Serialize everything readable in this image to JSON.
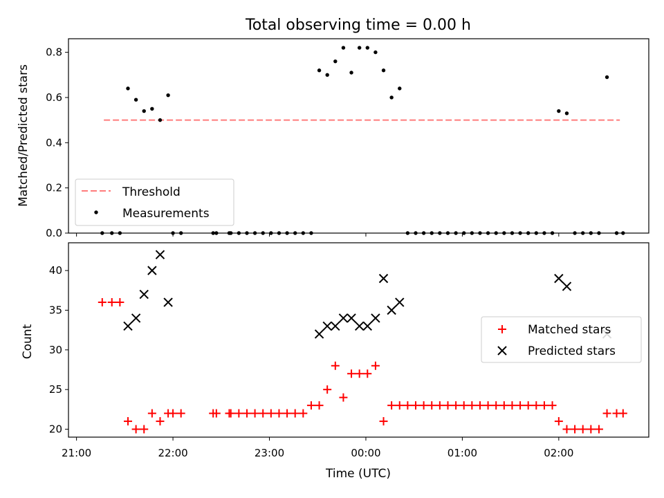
{
  "title": "Total observing time = 0.00 h",
  "x_tick_labels": [
    "21:00",
    "22:00",
    "23:00",
    "00:00",
    "01:00",
    "02:00"
  ],
  "chart_data": [
    {
      "type": "scatter",
      "ylabel": "Matched/Predicted stars",
      "xlim": [
        "20:55",
        "02:56"
      ],
      "ylim": [
        0,
        0.86
      ],
      "yticks": [
        0.0,
        0.2,
        0.4,
        0.6,
        0.8
      ],
      "legend": {
        "position": "lower-left",
        "entries": [
          "Threshold",
          "Measurements"
        ]
      },
      "threshold": {
        "name": "Threshold",
        "color": "#ff7b7b",
        "style": "dashed",
        "y": 0.5,
        "x_start": "21:17",
        "x_end": "02:38"
      },
      "measurements": {
        "name": "Measurements",
        "color": "#000000",
        "points": [
          [
            "21:16",
            0
          ],
          [
            "21:22",
            0
          ],
          [
            "21:27",
            0
          ],
          [
            "21:32",
            0.64
          ],
          [
            "21:37",
            0.59
          ],
          [
            "21:42",
            0.54
          ],
          [
            "21:47",
            0.55
          ],
          [
            "21:52",
            0.5
          ],
          [
            "21:57",
            0.61
          ],
          [
            "22:00",
            0
          ],
          [
            "22:05",
            0
          ],
          [
            "22:25",
            0
          ],
          [
            "22:27",
            0
          ],
          [
            "22:35",
            0
          ],
          [
            "22:36",
            0
          ],
          [
            "22:41",
            0
          ],
          [
            "22:46",
            0
          ],
          [
            "22:51",
            0
          ],
          [
            "22:56",
            0
          ],
          [
            "23:01",
            0
          ],
          [
            "23:06",
            0
          ],
          [
            "23:11",
            0
          ],
          [
            "23:16",
            0
          ],
          [
            "23:21",
            0
          ],
          [
            "23:26",
            0
          ],
          [
            "23:31",
            0.72
          ],
          [
            "23:36",
            0.7
          ],
          [
            "23:41",
            0.76
          ],
          [
            "23:46",
            0.82
          ],
          [
            "23:51",
            0.71
          ],
          [
            "23:56",
            0.82
          ],
          [
            "00:01",
            0.82
          ],
          [
            "00:06",
            0.8
          ],
          [
            "00:11",
            0.72
          ],
          [
            "00:16",
            0.6
          ],
          [
            "00:21",
            0.64
          ],
          [
            "00:26",
            0
          ],
          [
            "00:31",
            0
          ],
          [
            "00:36",
            0
          ],
          [
            "00:41",
            0
          ],
          [
            "00:46",
            0
          ],
          [
            "00:51",
            0
          ],
          [
            "00:56",
            0
          ],
          [
            "01:01",
            0
          ],
          [
            "01:06",
            0
          ],
          [
            "01:11",
            0
          ],
          [
            "01:16",
            0
          ],
          [
            "01:21",
            0
          ],
          [
            "01:26",
            0
          ],
          [
            "01:31",
            0
          ],
          [
            "01:36",
            0
          ],
          [
            "01:41",
            0
          ],
          [
            "01:46",
            0
          ],
          [
            "01:51",
            0
          ],
          [
            "01:56",
            0
          ],
          [
            "02:00",
            0.54
          ],
          [
            "02:05",
            0.53
          ],
          [
            "02:10",
            0
          ],
          [
            "02:15",
            0
          ],
          [
            "02:20",
            0
          ],
          [
            "02:25",
            0
          ],
          [
            "02:30",
            0.69
          ],
          [
            "02:36",
            0
          ],
          [
            "02:40",
            0
          ]
        ]
      }
    },
    {
      "type": "scatter",
      "ylabel": "Count",
      "xlabel": "Time (UTC)",
      "xlim": [
        "20:55",
        "02:56"
      ],
      "ylim": [
        19,
        43.5
      ],
      "yticks": [
        20,
        25,
        30,
        35,
        40
      ],
      "legend": {
        "position": "center-right",
        "entries": [
          "Matched stars",
          "Predicted stars"
        ]
      },
      "series": [
        {
          "name": "Matched stars",
          "marker": "+",
          "color": "#ff0000",
          "points": [
            [
              "21:16",
              36
            ],
            [
              "21:22",
              36
            ],
            [
              "21:27",
              36
            ],
            [
              "21:32",
              21
            ],
            [
              "21:37",
              20
            ],
            [
              "21:42",
              20
            ],
            [
              "21:47",
              22
            ],
            [
              "21:52",
              21
            ],
            [
              "21:57",
              22
            ],
            [
              "22:00",
              22
            ],
            [
              "22:05",
              22
            ],
            [
              "22:25",
              22
            ],
            [
              "22:27",
              22
            ],
            [
              "22:35",
              22
            ],
            [
              "22:36",
              22
            ],
            [
              "22:41",
              22
            ],
            [
              "22:46",
              22
            ],
            [
              "22:51",
              22
            ],
            [
              "22:56",
              22
            ],
            [
              "23:01",
              22
            ],
            [
              "23:06",
              22
            ],
            [
              "23:11",
              22
            ],
            [
              "23:16",
              22
            ],
            [
              "23:21",
              22
            ],
            [
              "23:26",
              23
            ],
            [
              "23:31",
              23
            ],
            [
              "23:36",
              25
            ],
            [
              "23:41",
              28
            ],
            [
              "23:46",
              24
            ],
            [
              "23:51",
              27
            ],
            [
              "23:56",
              27
            ],
            [
              "00:01",
              27
            ],
            [
              "00:06",
              28
            ],
            [
              "00:11",
              21
            ],
            [
              "00:16",
              23
            ],
            [
              "00:21",
              23
            ],
            [
              "00:26",
              23
            ],
            [
              "00:31",
              23
            ],
            [
              "00:36",
              23
            ],
            [
              "00:41",
              23
            ],
            [
              "00:46",
              23
            ],
            [
              "00:51",
              23
            ],
            [
              "00:56",
              23
            ],
            [
              "01:01",
              23
            ],
            [
              "01:06",
              23
            ],
            [
              "01:11",
              23
            ],
            [
              "01:16",
              23
            ],
            [
              "01:21",
              23
            ],
            [
              "01:26",
              23
            ],
            [
              "01:31",
              23
            ],
            [
              "01:36",
              23
            ],
            [
              "01:41",
              23
            ],
            [
              "01:46",
              23
            ],
            [
              "01:51",
              23
            ],
            [
              "01:56",
              23
            ],
            [
              "02:00",
              21
            ],
            [
              "02:05",
              20
            ],
            [
              "02:10",
              20
            ],
            [
              "02:15",
              20
            ],
            [
              "02:20",
              20
            ],
            [
              "02:25",
              20
            ],
            [
              "02:30",
              22
            ],
            [
              "02:36",
              22
            ],
            [
              "02:40",
              22
            ]
          ]
        },
        {
          "name": "Predicted stars",
          "marker": "x",
          "color": "#000000",
          "points": [
            [
              "21:32",
              33
            ],
            [
              "21:37",
              34
            ],
            [
              "21:42",
              37
            ],
            [
              "21:47",
              40
            ],
            [
              "21:52",
              42
            ],
            [
              "21:57",
              36
            ],
            [
              "23:31",
              32
            ],
            [
              "23:36",
              33
            ],
            [
              "23:41",
              33
            ],
            [
              "23:46",
              34
            ],
            [
              "23:51",
              34
            ],
            [
              "23:56",
              33
            ],
            [
              "00:01",
              33
            ],
            [
              "00:06",
              34
            ],
            [
              "00:11",
              39
            ],
            [
              "00:16",
              35
            ],
            [
              "00:21",
              36
            ],
            [
              "02:00",
              39
            ],
            [
              "02:05",
              38
            ],
            [
              "02:30",
              32
            ]
          ]
        }
      ]
    }
  ]
}
